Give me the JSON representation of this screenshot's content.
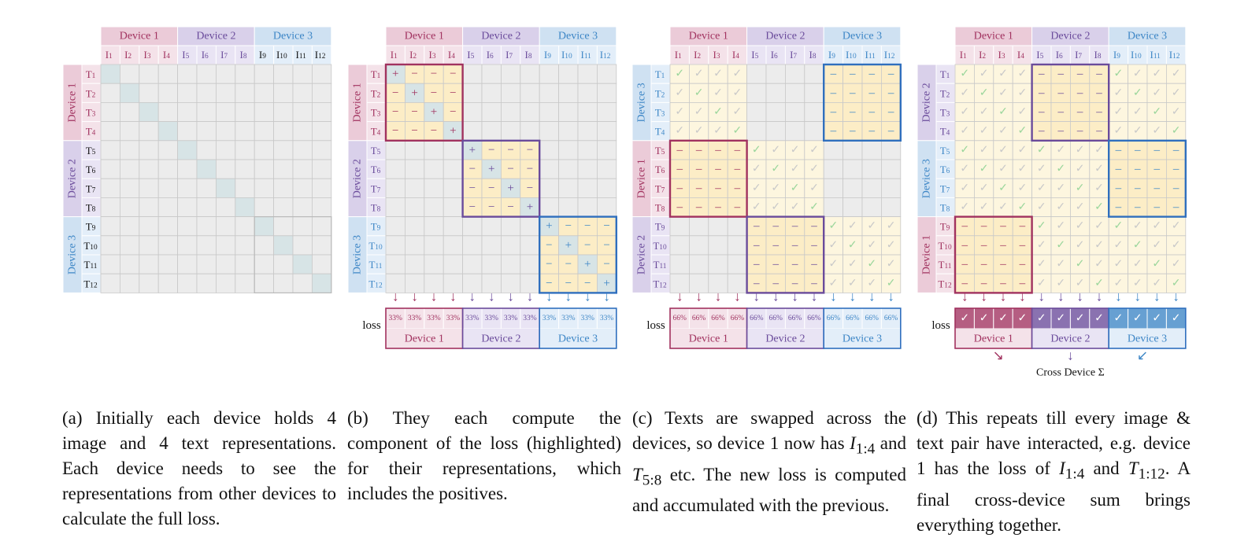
{
  "colors": {
    "d1": "#a1325f",
    "d1_bg": "#ebcbd8",
    "d1_bg_light": "#f4e2e9",
    "d1_border": "#a1325f",
    "d2": "#6a4b9b",
    "d2_bg": "#d9d0ea",
    "d2_bg_light": "#e9e4f4",
    "d2_border": "#6a4b9b",
    "d3": "#3d86c6",
    "d3_bg": "#cfe1f2",
    "d3_bg_light": "#e3eef9",
    "d3_border": "#2f6fbe",
    "cell_gray": "#ececec",
    "grid_line": "#c8c8c8",
    "diag_teal": "#d7e4e6",
    "cell_yellow": "#fcedc6",
    "cell_yellow_light": "#fdf6df",
    "check_green": "#9bd69c"
  },
  "device_labels": [
    "Device 1",
    "Device 2",
    "Device 3"
  ],
  "image_labels": [
    [
      "I",
      "1"
    ],
    [
      "I",
      "2"
    ],
    [
      "I",
      "3"
    ],
    [
      "I",
      "4"
    ],
    [
      "I",
      "5"
    ],
    [
      "I",
      "6"
    ],
    [
      "I",
      "7"
    ],
    [
      "I",
      "8"
    ],
    [
      "I",
      "9"
    ],
    [
      "I",
      "10"
    ],
    [
      "I",
      "11"
    ],
    [
      "I",
      "12"
    ]
  ],
  "text_labels": [
    [
      "T",
      "1"
    ],
    [
      "T",
      "2"
    ],
    [
      "T",
      "3"
    ],
    [
      "T",
      "4"
    ],
    [
      "T",
      "5"
    ],
    [
      "T",
      "6"
    ],
    [
      "T",
      "7"
    ],
    [
      "T",
      "8"
    ],
    [
      "T",
      "9"
    ],
    [
      "T",
      "10"
    ],
    [
      "T",
      "11"
    ],
    [
      "T",
      "12"
    ]
  ],
  "symbols": {
    "plus": "+",
    "minus": "−",
    "dash": "–",
    "check": "✓",
    "arrow_down": "↓",
    "arrow_diag_right": "↘",
    "arrow_diag_left": "↙"
  },
  "loss_label": "loss",
  "panels": [
    {
      "id": "a",
      "row_devices": [
        "Device 1",
        "Device 2",
        "Device 3"
      ]
    },
    {
      "id": "b",
      "row_devices": [
        "Device 1",
        "Device 2",
        "Device 3"
      ],
      "loss_values": [
        "33%",
        "33%",
        "33%",
        "33%",
        "33%",
        "33%",
        "33%",
        "33%",
        "33%",
        "33%",
        "33%",
        "33%"
      ]
    },
    {
      "id": "c",
      "row_devices": [
        "Device 3",
        "Device 1",
        "Device 2"
      ],
      "loss_values": [
        "66%",
        "66%",
        "66%",
        "66%",
        "66%",
        "66%",
        "66%",
        "66%",
        "66%",
        "66%",
        "66%",
        "66%"
      ]
    },
    {
      "id": "d",
      "row_devices": [
        "Device 2",
        "Device 3",
        "Device 1"
      ],
      "loss_values": [
        "✓",
        "✓",
        "✓",
        "✓",
        "✓",
        "✓",
        "✓",
        "✓",
        "✓",
        "✓",
        "✓",
        "✓"
      ]
    }
  ],
  "cross_device_label": "Cross Device Σ",
  "captions": {
    "a": "(a) Initially each device holds 4 image and 4 text representations. Each device needs to see the representations from other devices to calculate the full loss.",
    "b": "(b) They each compute the component of the loss (highlighted) for their representations, which includes the positives.",
    "c_parts": [
      "(c) Texts are swapped across the devices, so device 1 now has ",
      "I",
      "1:4",
      " and ",
      "T",
      "5:8",
      " etc.  The new loss is computed and accumulated with the previous."
    ],
    "d_parts": [
      "(d) This repeats till every image & text pair have interacted, e.g. device 1 has the loss of ",
      "I",
      "1:4",
      " and ",
      "T",
      "1:12",
      ".  A final cross-device sum brings everything together."
    ]
  }
}
